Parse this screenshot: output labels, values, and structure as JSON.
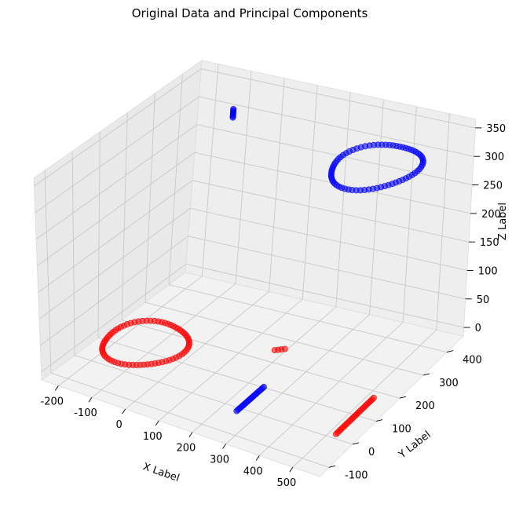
{
  "chart_data": {
    "type": "scatter",
    "projection": "3d",
    "title": "Original Data and Principal Components",
    "xlabel": "X Label",
    "ylabel": "Y Label",
    "zlabel": "Z Label",
    "xlim": [
      -250,
      580
    ],
    "ylim": [
      -140,
      470
    ],
    "zlim": [
      -15,
      365
    ],
    "xticks": [
      -200,
      -100,
      0,
      100,
      200,
      300,
      400,
      500
    ],
    "yticks": [
      -100,
      0,
      100,
      200,
      300,
      400
    ],
    "zticks": [
      0,
      50,
      100,
      150,
      200,
      250,
      300,
      350
    ],
    "grid": true,
    "series": [
      {
        "color": "#0000ff",
        "groups": [
          {
            "shape": "ring",
            "center": [
              380,
              340,
              300
            ],
            "radius": 110,
            "plane": "xy",
            "points": 70
          },
          {
            "shape": "segment",
            "from": [
              -130,
              450,
              300
            ],
            "to": [
              -130,
              450,
              285
            ],
            "points": 8
          },
          {
            "shape": "segment",
            "from": [
              265,
              70,
              0
            ],
            "to": [
              265,
              -45,
              0
            ],
            "points": 22
          }
        ]
      },
      {
        "color": "#ff0000",
        "groups": [
          {
            "shape": "ring",
            "center": [
              -110,
              100,
              0
            ],
            "radius": 105,
            "plane": "xy",
            "points": 70
          },
          {
            "shape": "segment",
            "from": [
              195,
              215,
              0
            ],
            "to": [
              215,
              230,
              0
            ],
            "points": 4
          },
          {
            "shape": "segment",
            "from": [
              540,
              -15,
              0
            ],
            "to": [
              540,
              145,
              0
            ],
            "points": 26
          }
        ]
      }
    ]
  }
}
